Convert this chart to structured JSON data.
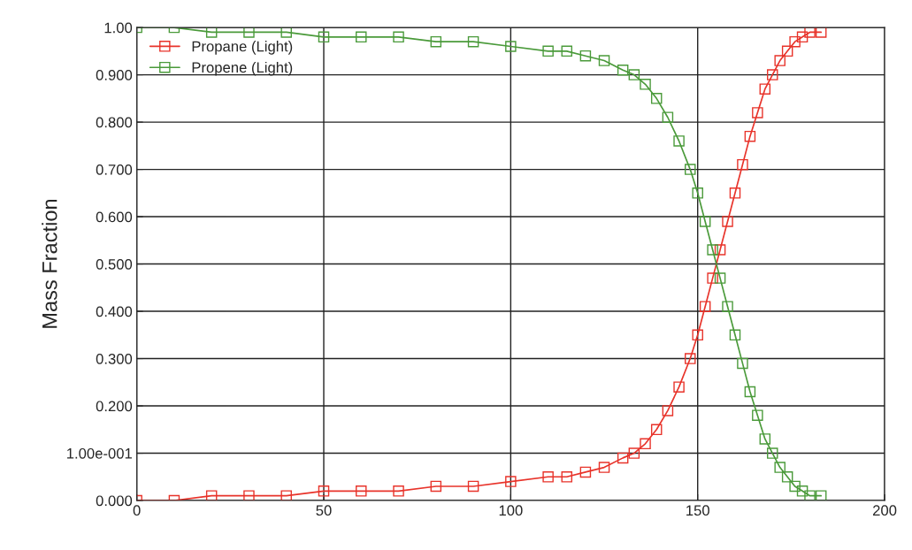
{
  "chart_data": {
    "type": "line",
    "ylabel": "Mass Fraction",
    "x": [
      0,
      10,
      20,
      30,
      40,
      50,
      60,
      70,
      80,
      90,
      100,
      110,
      115,
      120,
      125,
      130,
      133,
      136,
      139,
      142,
      145,
      148,
      150,
      152,
      154,
      156,
      158,
      160,
      162,
      164,
      166,
      168,
      170,
      172,
      174,
      176,
      178,
      180,
      183
    ],
    "series": [
      {
        "name": "Propane (Light)",
        "color": "#e8332a",
        "values": [
          0.0,
          0.0,
          0.01,
          0.01,
          0.01,
          0.02,
          0.02,
          0.02,
          0.03,
          0.03,
          0.04,
          0.05,
          0.05,
          0.06,
          0.07,
          0.09,
          0.1,
          0.12,
          0.15,
          0.19,
          0.24,
          0.3,
          0.35,
          0.41,
          0.47,
          0.53,
          0.59,
          0.65,
          0.71,
          0.77,
          0.82,
          0.87,
          0.9,
          0.93,
          0.95,
          0.97,
          0.98,
          0.99,
          0.99
        ]
      },
      {
        "name": "Propene (Light)",
        "color": "#4a9a3a",
        "values": [
          1.0,
          1.0,
          0.99,
          0.99,
          0.99,
          0.98,
          0.98,
          0.98,
          0.97,
          0.97,
          0.96,
          0.95,
          0.95,
          0.94,
          0.93,
          0.91,
          0.9,
          0.88,
          0.85,
          0.81,
          0.76,
          0.7,
          0.65,
          0.59,
          0.53,
          0.47,
          0.41,
          0.35,
          0.29,
          0.23,
          0.18,
          0.13,
          0.1,
          0.07,
          0.05,
          0.03,
          0.02,
          0.01,
          0.01
        ]
      }
    ],
    "xlim": [
      0,
      200
    ],
    "xticks": [
      0,
      50,
      100,
      150,
      200
    ],
    "ylim": [
      0,
      1.0
    ],
    "yticks": [
      {
        "value": 0,
        "label": "0.000"
      },
      {
        "value": 0.1,
        "label": "1.00e-001"
      },
      {
        "value": 0.2,
        "label": "0.200"
      },
      {
        "value": 0.3,
        "label": "0.300"
      },
      {
        "value": 0.4,
        "label": "0.400"
      },
      {
        "value": 0.5,
        "label": "0.500"
      },
      {
        "value": 0.6,
        "label": "0.600"
      },
      {
        "value": 0.7,
        "label": "0.700"
      },
      {
        "value": 0.8,
        "label": "0.800"
      },
      {
        "value": 0.9,
        "label": "0.900"
      },
      {
        "value": 1.0,
        "label": "1.00"
      }
    ],
    "grid": true,
    "legend": "top left",
    "marker": "square",
    "line_style": "solid"
  }
}
